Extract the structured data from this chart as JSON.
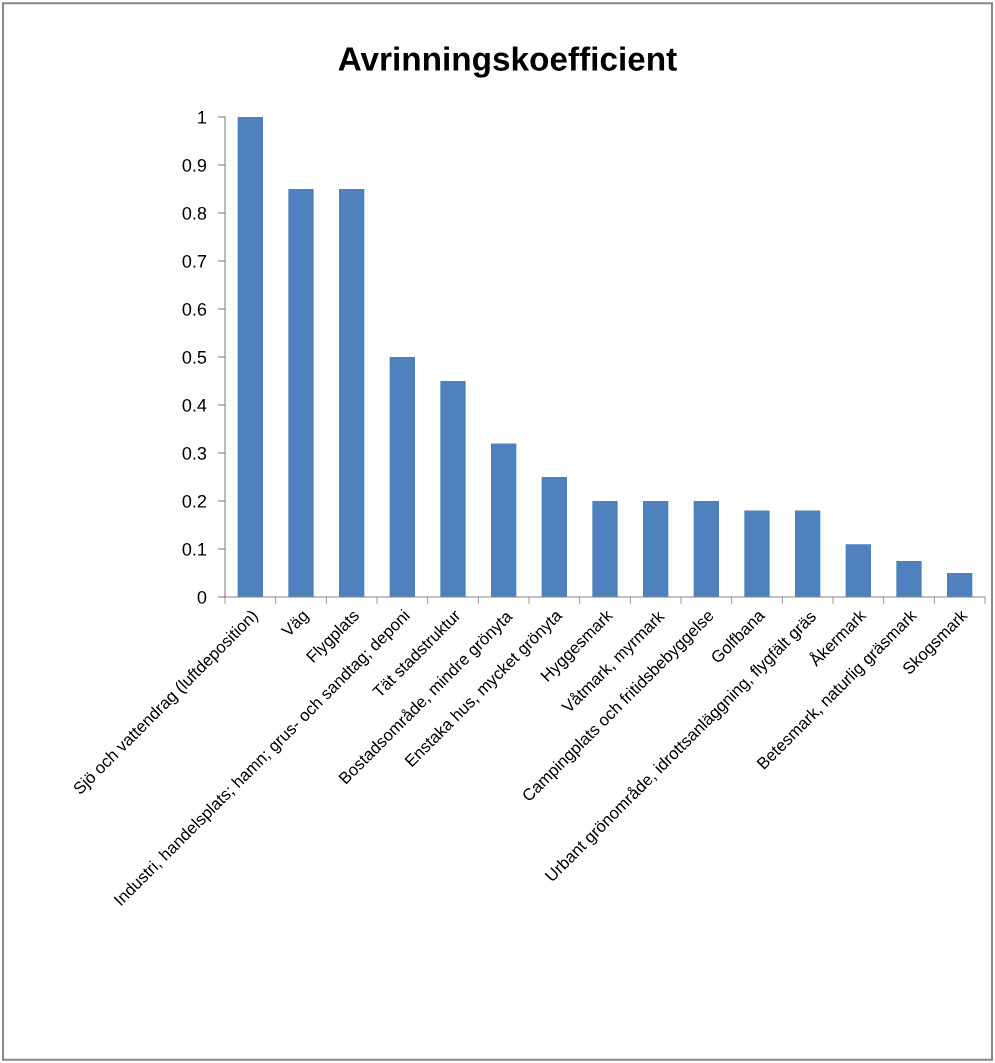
{
  "chart_data": {
    "type": "bar",
    "title": "Avrinningskoefficient",
    "categories": [
      "Sjö och vattendrag (luftdeposition)",
      "Väg",
      "Flygplats",
      "Industri, handelsplats; hamn; grus- och sandtag; deponi",
      "Tät stadstruktur",
      "Bostadsområde, mindre grönyta",
      "Enstaka hus, mycket grönyta",
      "Hyggesmark",
      "Våtmark, myrmark",
      "Campingplats och fritidsbebyggelse",
      "Golfbana",
      "Urbant grönområde, idrottsanläggning, flygfält gräs",
      "Åkermark",
      "Betesmark, naturlig gräsmark",
      "Skogsmark"
    ],
    "values": [
      1,
      0.85,
      0.85,
      0.5,
      0.45,
      0.32,
      0.25,
      0.2,
      0.2,
      0.2,
      0.18,
      0.18,
      0.11,
      0.075,
      0.05
    ],
    "color": "#4f81bd",
    "ylim": [
      0,
      1
    ],
    "yticks": [
      0,
      0.1,
      0.2,
      0.3,
      0.4,
      0.5,
      0.6,
      0.7,
      0.8,
      0.9,
      1
    ],
    "grid": false,
    "legend": false
  }
}
